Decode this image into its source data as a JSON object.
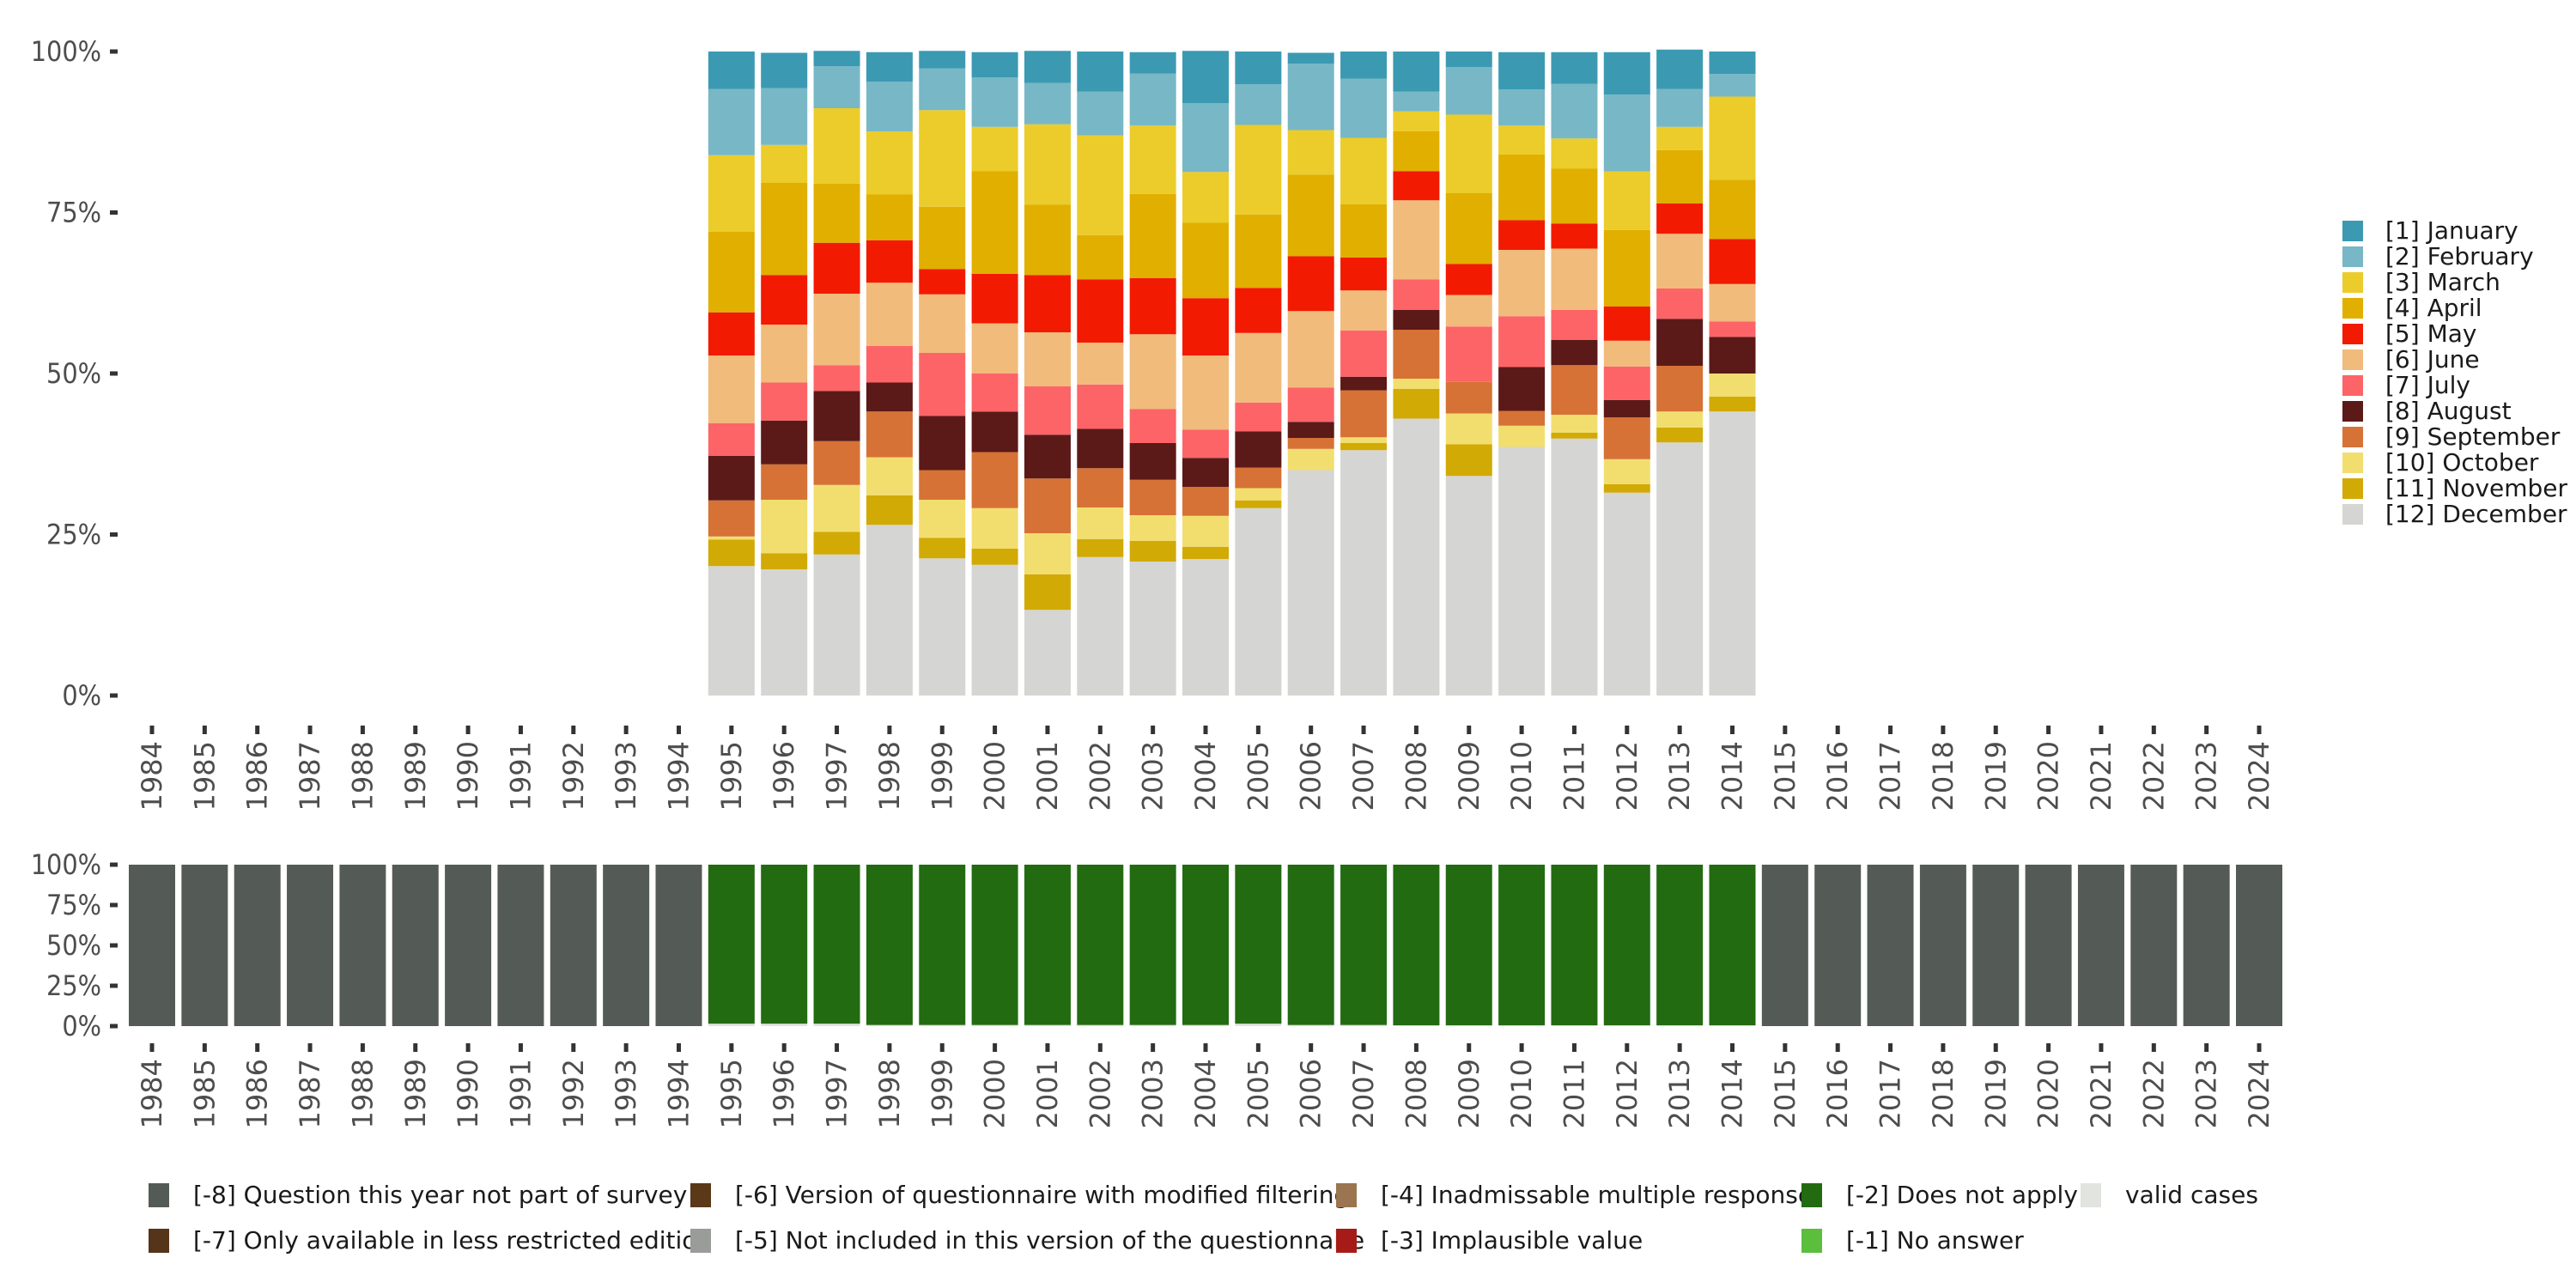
{
  "chart_data": [
    {
      "type": "bar",
      "stacked": true,
      "normalized": true,
      "title": "",
      "xlabel": "",
      "ylabel": "",
      "ylim": [
        0,
        100
      ],
      "y_ticks": [
        "0%",
        "25%",
        "50%",
        "75%",
        "100%"
      ],
      "y_tick_values": [
        0,
        25,
        50,
        75,
        100
      ],
      "x_ticks": [
        "1984",
        "1985",
        "1986",
        "1987",
        "1988",
        "1989",
        "1990",
        "1991",
        "1992",
        "1993",
        "1994",
        "1995",
        "1996",
        "1997",
        "1998",
        "1999",
        "2000",
        "2001",
        "2002",
        "2003",
        "2004",
        "2005",
        "2006",
        "2007",
        "2008",
        "2009",
        "2010",
        "2011",
        "2012",
        "2013",
        "2014",
        "2015",
        "2016",
        "2017",
        "2018",
        "2019",
        "2020",
        "2021",
        "2022",
        "2023",
        "2024"
      ],
      "grid": false,
      "legend_position": "right",
      "categories": [
        "1995",
        "1996",
        "1997",
        "1998",
        "1999",
        "2000",
        "2001",
        "2002",
        "2003",
        "2004",
        "2005",
        "2006",
        "2007",
        "2008",
        "2009",
        "2010",
        "2011",
        "2012",
        "2013",
        "2014"
      ],
      "series": [
        {
          "name": "[1] January",
          "color": "#3B9AB2",
          "values": [
            5.8,
            5.5,
            2.4,
            4.6,
            2.7,
            3.9,
            5.0,
            6.2,
            3.3,
            8.1,
            5.1,
            1.7,
            4.2,
            6.2,
            2.4,
            5.8,
            4.9,
            6.6,
            6.1,
            3.5
          ]
        },
        {
          "name": "[2] February",
          "color": "#78B7C5",
          "values": [
            10.3,
            8.8,
            6.5,
            7.7,
            6.5,
            7.7,
            6.4,
            6.8,
            8.1,
            10.7,
            6.3,
            10.3,
            9.2,
            3.1,
            7.4,
            5.6,
            8.5,
            11.9,
            5.9,
            3.5
          ]
        },
        {
          "name": "[3] March",
          "color": "#EBCC2A",
          "values": [
            11.9,
            5.9,
            11.7,
            9.8,
            15.0,
            6.9,
            12.5,
            15.5,
            10.6,
            7.9,
            13.9,
            6.9,
            10.3,
            3.1,
            12.2,
            4.5,
            4.7,
            9.1,
            3.6,
            12.9
          ]
        },
        {
          "name": "[4] April",
          "color": "#E1AF00",
          "values": [
            12.5,
            14.3,
            9.2,
            7.1,
            9.7,
            15.9,
            10.9,
            6.9,
            13.1,
            11.7,
            11.4,
            12.7,
            8.3,
            6.2,
            11.0,
            10.2,
            8.5,
            11.9,
            8.3,
            9.2
          ]
        },
        {
          "name": "[5] May",
          "color": "#F21A00",
          "values": [
            6.7,
            7.7,
            7.9,
            6.6,
            3.9,
            7.7,
            8.9,
            9.8,
            8.7,
            8.9,
            7.0,
            8.5,
            5.1,
            4.5,
            4.8,
            4.6,
            3.9,
            5.3,
            4.7,
            7.0
          ]
        },
        {
          "name": "[6] June",
          "color": "#F1BB7B",
          "values": [
            10.5,
            9.0,
            11.1,
            9.8,
            9.1,
            7.8,
            8.4,
            6.5,
            11.6,
            11.5,
            10.8,
            11.9,
            6.2,
            12.3,
            4.9,
            10.3,
            9.5,
            4.0,
            8.5,
            5.8
          ]
        },
        {
          "name": "[7] July",
          "color": "#FD6467",
          "values": [
            5.1,
            5.9,
            4.0,
            5.7,
            9.8,
            5.9,
            7.5,
            6.9,
            5.3,
            4.4,
            4.5,
            5.3,
            7.2,
            4.7,
            8.6,
            7.9,
            4.7,
            5.2,
            4.7,
            2.4
          ]
        },
        {
          "name": "[8] August",
          "color": "#5B1A18",
          "values": [
            6.9,
            6.8,
            7.8,
            4.5,
            8.4,
            6.3,
            6.8,
            6.1,
            5.7,
            4.5,
            5.6,
            2.5,
            2.1,
            3.1,
            0,
            6.8,
            3.9,
            2.7,
            7.3,
            5.7
          ]
        },
        {
          "name": "[9] September",
          "color": "#D67236",
          "values": [
            5.6,
            5.5,
            6.8,
            7.1,
            4.6,
            8.7,
            8.5,
            6.1,
            5.5,
            4.5,
            3.2,
            1.7,
            7.3,
            7.6,
            4.9,
            2.3,
            7.7,
            6.5,
            7.1,
            0
          ]
        },
        {
          "name": "[10] October",
          "color": "#F2DE6F",
          "values": [
            0.5,
            8.3,
            7.3,
            5.9,
            5.9,
            6.3,
            6.4,
            4.9,
            4.0,
            4.8,
            1.9,
            3.3,
            0.9,
            1.6,
            4.8,
            3.3,
            2.8,
            3.9,
            2.5,
            3.6
          ]
        },
        {
          "name": "[11] November",
          "color": "#D1AA05",
          "values": [
            4.1,
            2.5,
            3.5,
            4.6,
            3.2,
            2.5,
            5.5,
            2.8,
            3.2,
            1.9,
            1.2,
            0,
            1.1,
            4.6,
            4.9,
            0,
            0.9,
            1.3,
            2.3,
            2.3
          ]
        },
        {
          "name": "[12] December",
          "color": "#D5D5D3",
          "values": [
            20.1,
            19.6,
            21.9,
            26.5,
            21.3,
            20.3,
            13.3,
            21.5,
            20.8,
            21.2,
            29.1,
            35.0,
            38.1,
            43.0,
            34.1,
            38.6,
            39.9,
            31.5,
            39.3,
            44.1
          ]
        }
      ]
    },
    {
      "type": "bar",
      "stacked": true,
      "normalized": true,
      "title": "",
      "xlabel": "",
      "ylabel": "",
      "ylim": [
        0,
        100
      ],
      "y_ticks": [
        "0%",
        "25%",
        "50%",
        "75%",
        "100%"
      ],
      "y_tick_values": [
        0,
        25,
        50,
        75,
        100
      ],
      "grid": false,
      "legend_position": "bottom",
      "categories": [
        "1984",
        "1985",
        "1986",
        "1987",
        "1988",
        "1989",
        "1990",
        "1991",
        "1992",
        "1993",
        "1994",
        "1995",
        "1996",
        "1997",
        "1998",
        "1999",
        "2000",
        "2001",
        "2002",
        "2003",
        "2004",
        "2005",
        "2006",
        "2007",
        "2008",
        "2009",
        "2010",
        "2011",
        "2012",
        "2013",
        "2014",
        "2015",
        "2016",
        "2017",
        "2018",
        "2019",
        "2020",
        "2021",
        "2022",
        "2023",
        "2024"
      ],
      "series": [
        {
          "name": "[-8] Question this year not part of survey",
          "color": "#545B56",
          "values": [
            100,
            100,
            100,
            100,
            100,
            100,
            100,
            100,
            100,
            100,
            100,
            0,
            0,
            0,
            0,
            0,
            0,
            0,
            0,
            0,
            0,
            0,
            0,
            0,
            0,
            0,
            0,
            0,
            0,
            0,
            0,
            100,
            100,
            100,
            100,
            100,
            100,
            100,
            100,
            100,
            100
          ]
        },
        {
          "name": "[-2] Does not apply",
          "color": "#226B11",
          "values": [
            0,
            0,
            0,
            0,
            0,
            0,
            0,
            0,
            0,
            0,
            0,
            98.5,
            98.5,
            98.5,
            99.3,
            99.3,
            99.3,
            99.3,
            99.3,
            99.3,
            99.3,
            98.5,
            99.3,
            99.3,
            99.5,
            99.5,
            99.5,
            99.5,
            99.5,
            99.5,
            99.5,
            0,
            0,
            0,
            0,
            0,
            0,
            0,
            0,
            0,
            0
          ]
        },
        {
          "name": "valid cases",
          "color": "#E2E4E0",
          "values": [
            0,
            0,
            0,
            0,
            0,
            0,
            0,
            0,
            0,
            0,
            0,
            1.5,
            1.5,
            1.5,
            0.7,
            0.7,
            0.7,
            0.7,
            0.7,
            0.7,
            0.7,
            1.5,
            0.7,
            0.7,
            0.5,
            0.5,
            0.5,
            0.5,
            0.5,
            0.5,
            0.5,
            0,
            0,
            0,
            0,
            0,
            0,
            0,
            0,
            0,
            0
          ]
        }
      ],
      "legend": [
        {
          "label": "[-8] Question this year not part of survey",
          "color": "#545B56"
        },
        {
          "label": "[-6] Version of questionnaire with modified filtering",
          "color": "#5A3818"
        },
        {
          "label": "[-4] Inadmissable multiple response",
          "color": "#9A7550"
        },
        {
          "label": "[-2] Does not apply",
          "color": "#226B11"
        },
        {
          "label": "valid cases",
          "color": "#E2E4E0"
        },
        {
          "label": "[-7] Only available in less restricted edition",
          "color": "#55341A"
        },
        {
          "label": "[-5] Not included in this version of the questionnaire",
          "color": "#999C98"
        },
        {
          "label": "[-3] Implausible value",
          "color": "#A61B17"
        },
        {
          "label": "[-1] No answer",
          "color": "#5BBE3D"
        }
      ]
    }
  ]
}
